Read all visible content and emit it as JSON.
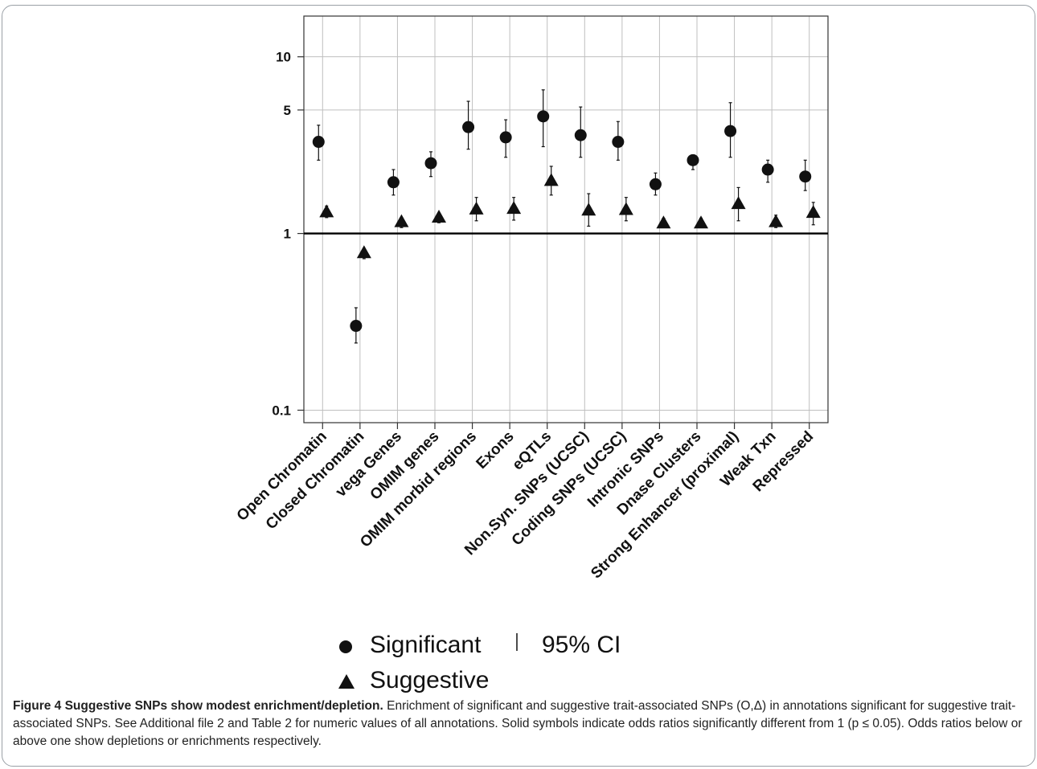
{
  "chart_data": {
    "type": "scatter",
    "yscale": "log",
    "ylim": [
      0.085,
      17
    ],
    "yticks": [
      {
        "value": 0.1,
        "label": "0.1"
      },
      {
        "value": 1,
        "label": "1"
      },
      {
        "value": 5,
        "label": "5"
      },
      {
        "value": 10,
        "label": "10"
      }
    ],
    "reference_line": 1,
    "grid": true,
    "categories": [
      "Open Chromatin",
      "Closed Chromatin",
      "vega Genes",
      "OMIM genes",
      "OMIM morbid regions",
      "Exons",
      "eQTLs",
      "Non.Syn. SNPs (UCSC)",
      "Coding SNPs (UCSC)",
      "Intronic SNPs",
      "Dnase Clusters",
      "Strong Enhancer (proximal)",
      "Weak Txn",
      "Repressed"
    ],
    "series": [
      {
        "name": "Significant",
        "marker": "circle",
        "values": [
          3.3,
          0.3,
          1.95,
          2.5,
          4.0,
          3.5,
          4.6,
          3.6,
          3.3,
          1.9,
          2.6,
          3.8,
          2.3,
          2.1
        ],
        "ci_low": [
          2.6,
          0.24,
          1.65,
          2.1,
          3.0,
          2.7,
          3.1,
          2.7,
          2.6,
          1.65,
          2.3,
          2.7,
          1.95,
          1.75
        ],
        "ci_high": [
          4.1,
          0.38,
          2.3,
          2.9,
          5.6,
          4.4,
          6.5,
          5.2,
          4.3,
          2.2,
          2.7,
          5.5,
          2.6,
          2.6
        ]
      },
      {
        "name": "Suggestive",
        "marker": "triangle",
        "values": [
          1.33,
          0.78,
          1.17,
          1.24,
          1.38,
          1.39,
          2.0,
          1.36,
          1.37,
          1.15,
          1.15,
          1.48,
          1.17,
          1.32
        ],
        "ci_low": [
          1.23,
          0.72,
          1.08,
          1.15,
          1.18,
          1.19,
          1.65,
          1.1,
          1.18,
          1.08,
          1.08,
          1.18,
          1.08,
          1.12
        ],
        "ci_high": [
          1.43,
          0.82,
          1.23,
          1.3,
          1.6,
          1.6,
          2.4,
          1.68,
          1.6,
          1.22,
          1.22,
          1.82,
          1.27,
          1.5
        ]
      }
    ],
    "legend": {
      "placement": "bottom",
      "items": [
        {
          "label": "Significant",
          "symbol": "circle"
        },
        {
          "label": "95% CI",
          "symbol": "bar"
        },
        {
          "label": "Suggestive",
          "symbol": "triangle"
        }
      ]
    }
  },
  "caption": {
    "title": "Figure 4 Suggestive SNPs show modest enrichment/depletion.",
    "text": "Enrichment of significant and suggestive trait-associated SNPs (O,Δ) in annotations significant for suggestive trait-associated SNPs. See Additional file 2 and Table 2 for numeric values of all annotations. Solid symbols indicate odds ratios significantly different from 1 (p ≤ 0.05). Odds ratios below or above one show depletions or enrichments respectively."
  }
}
